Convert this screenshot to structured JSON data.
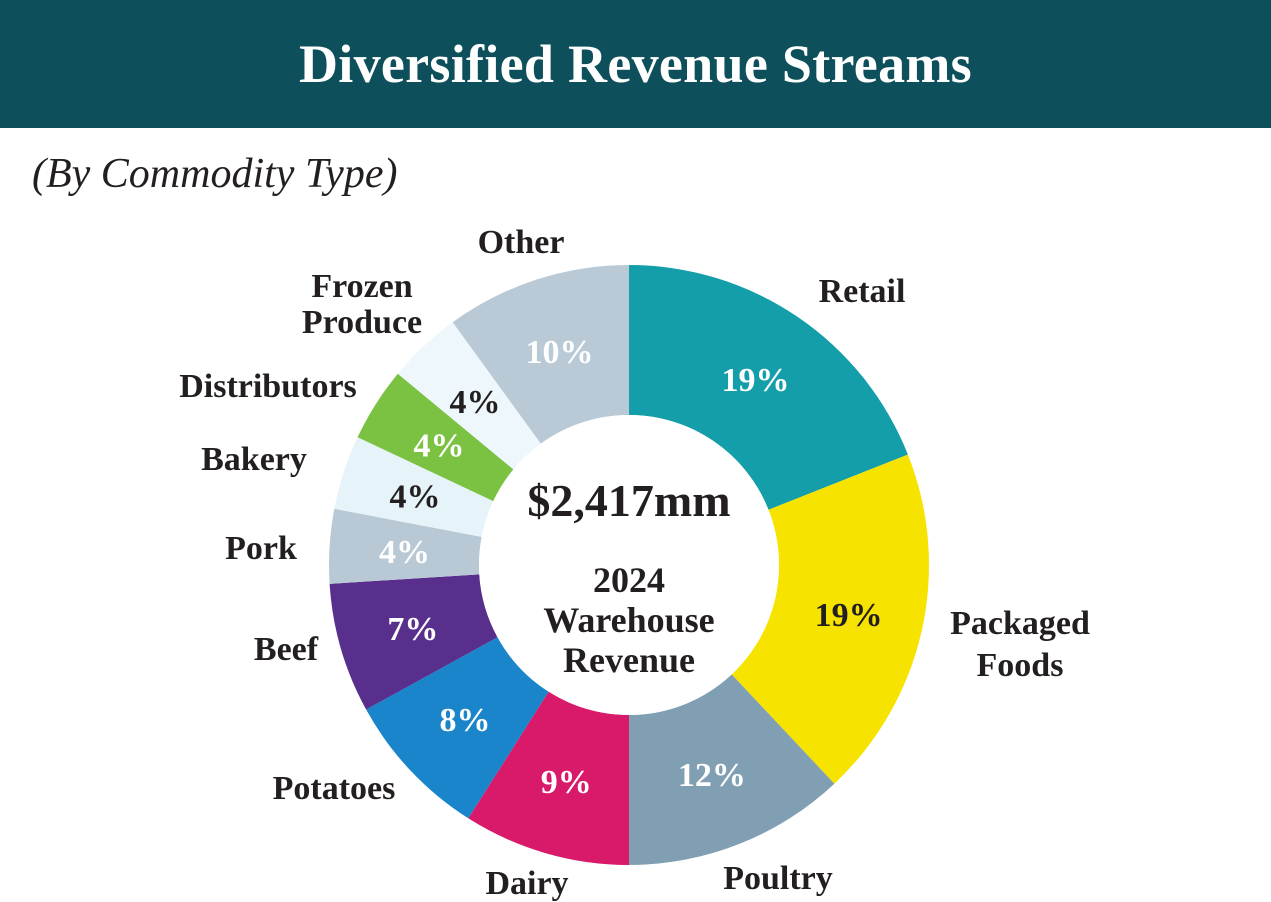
{
  "header": {
    "title": "Diversified Revenue Streams"
  },
  "subtitle": "(By Commodity Type)",
  "colors": {
    "header_bg": "#0d4f5a",
    "text_dark": "#231f20"
  },
  "chart_data": {
    "type": "pie",
    "style": "donut",
    "title": "Diversified Revenue Streams",
    "subtitle": "(By Commodity Type)",
    "center": {
      "total": "$2,417mm",
      "label_lines": [
        "2024",
        "Warehouse",
        "Revenue"
      ]
    },
    "slices": [
      {
        "name": "Retail",
        "label_lines": [
          "Retail"
        ],
        "value": 19,
        "display": "19%",
        "color": "#139ea9",
        "label_color": "#ffffff"
      },
      {
        "name": "Packaged Foods",
        "label_lines": [
          "Packaged",
          "Foods"
        ],
        "value": 19,
        "display": "19%",
        "color": "#f7e300",
        "label_color": "#231f20"
      },
      {
        "name": "Poultry",
        "label_lines": [
          "Poultry"
        ],
        "value": 12,
        "display": "12%",
        "color": "#819fb3",
        "label_color": "#ffffff"
      },
      {
        "name": "Dairy",
        "label_lines": [
          "Dairy"
        ],
        "value": 9,
        "display": "9%",
        "color": "#d9196a",
        "label_color": "#ffffff"
      },
      {
        "name": "Potatoes",
        "label_lines": [
          "Potatoes"
        ],
        "value": 8,
        "display": "8%",
        "color": "#1b85cb",
        "label_color": "#ffffff"
      },
      {
        "name": "Beef",
        "label_lines": [
          "Beef"
        ],
        "value": 7,
        "display": "7%",
        "color": "#582f8c",
        "label_color": "#ffffff"
      },
      {
        "name": "Pork",
        "label_lines": [
          "Pork"
        ],
        "value": 4,
        "display": "4%",
        "color": "#b8c8d4",
        "label_color": "#ffffff"
      },
      {
        "name": "Bakery",
        "label_lines": [
          "Bakery"
        ],
        "value": 4,
        "display": "4%",
        "color": "#e6f4f9",
        "label_color": "#231f20"
      },
      {
        "name": "Distributors",
        "label_lines": [
          "Distributors"
        ],
        "value": 4,
        "display": "4%",
        "color": "#7cc242",
        "label_color": "#ffffff"
      },
      {
        "name": "Frozen Produce",
        "label_lines": [
          "Frozen",
          "Produce"
        ],
        "value": 4,
        "display": "4%",
        "color": "#eef7fb",
        "label_color": "#231f20"
      },
      {
        "name": "Other",
        "label_lines": [
          "Other"
        ],
        "value": 10,
        "display": "10%",
        "color": "#b9cad6",
        "label_color": "#ffffff"
      }
    ]
  }
}
